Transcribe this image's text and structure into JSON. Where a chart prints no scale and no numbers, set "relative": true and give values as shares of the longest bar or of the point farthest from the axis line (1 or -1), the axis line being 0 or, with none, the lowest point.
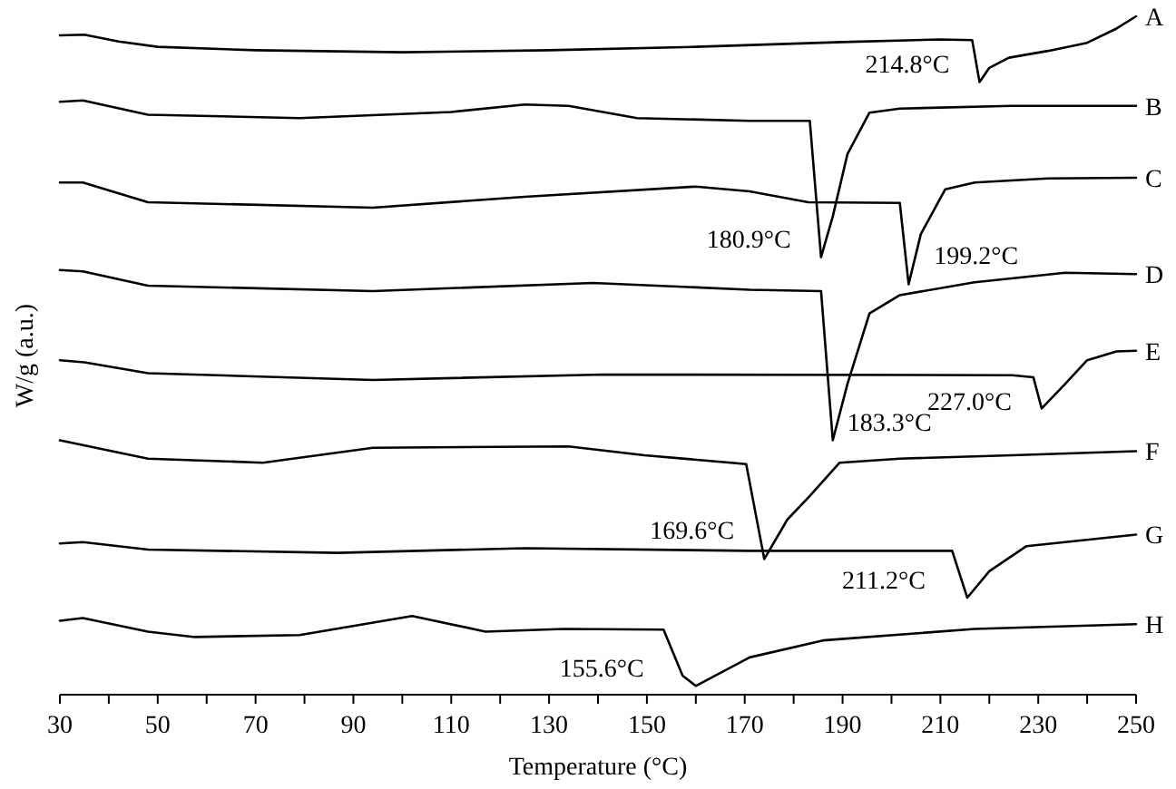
{
  "chart_data": {
    "type": "line",
    "relative": true,
    "xlabel": "Temperature (°C)",
    "ylabel": "W/g (a.u.)",
    "xlim": [
      30,
      250
    ],
    "xticks": [
      30,
      {
        "value": 40,
        "label": null
      },
      50,
      {
        "value": 60,
        "label": null
      },
      70,
      {
        "value": 80,
        "label": null
      },
      90,
      {
        "value": 100,
        "label": null
      },
      110,
      {
        "value": 120,
        "label": null
      },
      130,
      {
        "value": 140,
        "label": null
      },
      150,
      {
        "value": 160,
        "label": null
      },
      170,
      {
        "value": 180,
        "label": null
      },
      190,
      {
        "value": 200,
        "label": null
      },
      210,
      {
        "value": 220,
        "label": null
      },
      230,
      {
        "value": 240,
        "label": null
      },
      250
    ],
    "grid": false,
    "legend": false,
    "marker": "none",
    "line_style": "solid",
    "series": [
      {
        "name": "A",
        "color": "#000000",
        "x": [
          30,
          35,
          42,
          50,
          70,
          100,
          130,
          160,
          190,
          210,
          216.5,
          218,
          220,
          224,
          232,
          240,
          246,
          250
        ],
        "values": [
          0.972,
          0.973,
          0.963,
          0.955,
          0.95,
          0.947,
          0.95,
          0.955,
          0.962,
          0.966,
          0.965,
          0.903,
          0.924,
          0.939,
          0.949,
          0.961,
          0.982,
          1
        ]
      },
      {
        "name": "B",
        "color": "#000000",
        "x": [
          30,
          34.7,
          48,
          79,
          110,
          125,
          134,
          148,
          171,
          183.3,
          185.6,
          188,
          191,
          195.5,
          201.7,
          224.5,
          250
        ],
        "values": [
          0.874,
          0.876,
          0.855,
          0.85,
          0.859,
          0.87,
          0.868,
          0.85,
          0.846,
          0.846,
          0.645,
          0.705,
          0.797,
          0.858,
          0.864,
          0.868,
          0.868
        ]
      },
      {
        "name": "C",
        "color": "#000000",
        "x": [
          30,
          34.7,
          48,
          94,
          125,
          160,
          171,
          183,
          201.7,
          203.5,
          206,
          211,
          217,
          232,
          250
        ],
        "values": [
          0.755,
          0.755,
          0.726,
          0.718,
          0.734,
          0.749,
          0.742,
          0.726,
          0.725,
          0.605,
          0.679,
          0.745,
          0.755,
          0.761,
          0.762
        ]
      },
      {
        "name": "D",
        "color": "#000000",
        "x": [
          30,
          34.7,
          48,
          94,
          139,
          171,
          185.6,
          188,
          191,
          195.5,
          201.7,
          217,
          235.5,
          250
        ],
        "values": [
          0.626,
          0.624,
          0.603,
          0.595,
          0.607,
          0.597,
          0.595,
          0.375,
          0.458,
          0.562,
          0.589,
          0.608,
          0.622,
          0.62
        ]
      },
      {
        "name": "E",
        "color": "#000000",
        "x": [
          30,
          35,
          48,
          94,
          141,
          224.7,
          229,
          230.7,
          235.5,
          240,
          246,
          250
        ],
        "values": [
          0.493,
          0.49,
          0.474,
          0.464,
          0.472,
          0.471,
          0.468,
          0.422,
          0.458,
          0.493,
          0.506,
          0.507
        ]
      },
      {
        "name": "F",
        "color": "#000000",
        "x": [
          30,
          48,
          71.5,
          94,
          134,
          149.5,
          170.3,
          174,
          178.7,
          183.3,
          189.4,
          201.7,
          224.7,
          250
        ],
        "values": [
          0.375,
          0.348,
          0.342,
          0.364,
          0.366,
          0.353,
          0.34,
          0.2,
          0.258,
          0.293,
          0.342,
          0.348,
          0.353,
          0.359
        ]
      },
      {
        "name": "G",
        "color": "#000000",
        "x": [
          30,
          34.7,
          48,
          86.8,
          125,
          171,
          212.4,
          215.5,
          220,
          227.6,
          250
        ],
        "values": [
          0.223,
          0.225,
          0.214,
          0.209,
          0.216,
          0.212,
          0.212,
          0.143,
          0.182,
          0.219,
          0.236
        ]
      },
      {
        "name": "H",
        "color": "#000000",
        "x": [
          30,
          34.7,
          48,
          57.6,
          79,
          102,
          117,
          133,
          153.4,
          157.3,
          160,
          171,
          186,
          217,
          250
        ],
        "values": [
          0.109,
          0.113,
          0.093,
          0.085,
          0.088,
          0.116,
          0.093,
          0.097,
          0.096,
          0.028,
          0.013,
          0.055,
          0.08,
          0.097,
          0.104
        ]
      }
    ],
    "annotations": [
      "214.8°C",
      "180.9°C",
      "199.2°C",
      "183.3°C",
      "227.0°C",
      "169.6°C",
      "211.2°C",
      "155.6°C"
    ]
  }
}
